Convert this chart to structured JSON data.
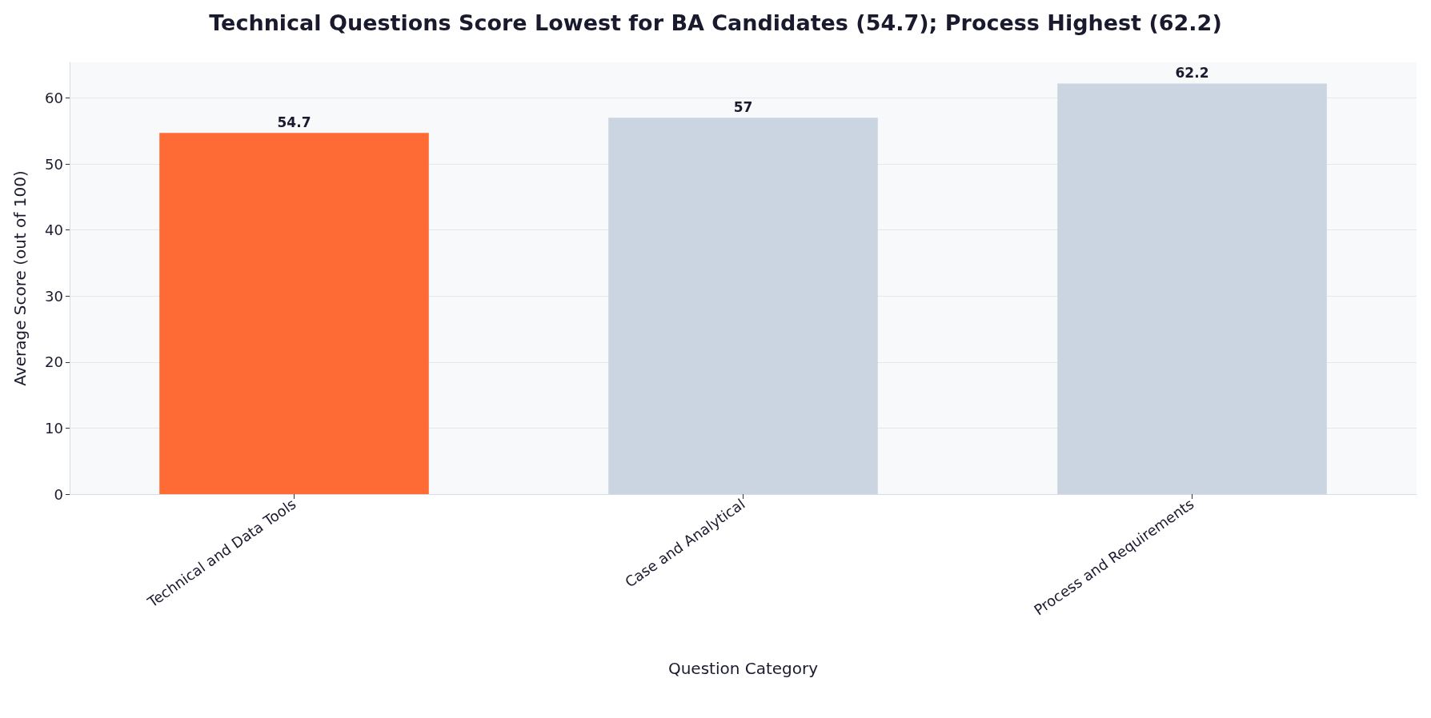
{
  "chart_data": {
    "type": "bar",
    "title": "Technical Questions Score Lowest for BA Candidates (54.7); Process Highest (62.2)",
    "xlabel": "Question Category",
    "ylabel": "Average Score (out of 100)",
    "categories": [
      "Technical and Data Tools",
      "Case and Analytical",
      "Process and Requirements"
    ],
    "values": [
      54.7,
      57,
      62.2
    ],
    "colors": [
      "#ff6b35",
      "#cbd5e1",
      "#cbd5e1"
    ],
    "ylim": [
      0,
      65.4
    ],
    "yticks": [
      0,
      10,
      20,
      30,
      40,
      50,
      60
    ],
    "grid": "y",
    "data_labels": true
  }
}
